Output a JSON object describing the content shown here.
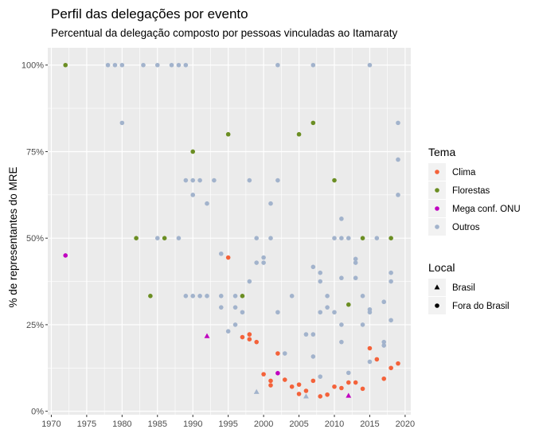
{
  "chart_data": {
    "type": "scatter",
    "title": "Perfil das delegações por evento",
    "subtitle": "Percentual da delegação composto por pessoas vinculadas ao Itamaraty",
    "xlabel": "",
    "ylabel": "% de representantes do MRE",
    "xlim": [
      1969.5,
      2020.8
    ],
    "ylim": [
      -0.01,
      1.05
    ],
    "x_ticks": [
      1970,
      1975,
      1980,
      1985,
      1990,
      1995,
      2000,
      2005,
      2010,
      2015,
      2020
    ],
    "y_ticks": [
      {
        "value": 0,
        "label": "0%"
      },
      {
        "value": 0.25,
        "label": "25%"
      },
      {
        "value": 0.5,
        "label": "50%"
      },
      {
        "value": 0.75,
        "label": "75%"
      },
      {
        "value": 1.0,
        "label": "100%"
      }
    ],
    "grid": true,
    "legend_position": "right",
    "colors": {
      "Clima": "#f4623a",
      "Florestas": "#6b8e23",
      "Mega conf. ONU": "#c000c0",
      "Outros": "#a2b3cc"
    },
    "legend_tema": {
      "title": "Tema",
      "items": [
        {
          "key": "Clima",
          "label": "Clima"
        },
        {
          "key": "Florestas",
          "label": "Florestas"
        },
        {
          "key": "Mega conf. ONU",
          "label": "Mega conf. ONU"
        },
        {
          "key": "Outros",
          "label": "Outros"
        }
      ]
    },
    "legend_local": {
      "title": "Local",
      "items": [
        {
          "shape": "triangle",
          "label": "Brasil"
        },
        {
          "shape": "circle",
          "label": "Fora do Brasil"
        }
      ]
    },
    "points": [
      {
        "x": 1972,
        "y": 1.0,
        "tema": "Florestas",
        "local": "Fora do Brasil"
      },
      {
        "x": 1972,
        "y": 0.45,
        "tema": "Mega conf. ONU",
        "local": "Fora do Brasil"
      },
      {
        "x": 1978,
        "y": 1.0,
        "tema": "Outros",
        "local": "Fora do Brasil"
      },
      {
        "x": 1979,
        "y": 1.0,
        "tema": "Outros",
        "local": "Fora do Brasil"
      },
      {
        "x": 1980,
        "y": 1.0,
        "tema": "Outros",
        "local": "Fora do Brasil"
      },
      {
        "x": 1983,
        "y": 1.0,
        "tema": "Outros",
        "local": "Fora do Brasil"
      },
      {
        "x": 1985,
        "y": 1.0,
        "tema": "Outros",
        "local": "Fora do Brasil"
      },
      {
        "x": 1987,
        "y": 1.0,
        "tema": "Outros",
        "local": "Fora do Brasil"
      },
      {
        "x": 1988,
        "y": 1.0,
        "tema": "Outros",
        "local": "Fora do Brasil"
      },
      {
        "x": 1989,
        "y": 1.0,
        "tema": "Outros",
        "local": "Fora do Brasil"
      },
      {
        "x": 2002,
        "y": 1.0,
        "tema": "Outros",
        "local": "Fora do Brasil"
      },
      {
        "x": 2007,
        "y": 1.0,
        "tema": "Outros",
        "local": "Fora do Brasil"
      },
      {
        "x": 2015,
        "y": 1.0,
        "tema": "Outros",
        "local": "Fora do Brasil"
      },
      {
        "x": 1980,
        "y": 0.833,
        "tema": "Outros",
        "local": "Fora do Brasil"
      },
      {
        "x": 2019,
        "y": 0.833,
        "tema": "Outros",
        "local": "Fora do Brasil"
      },
      {
        "x": 1995,
        "y": 0.8,
        "tema": "Florestas",
        "local": "Fora do Brasil"
      },
      {
        "x": 2005,
        "y": 0.8,
        "tema": "Florestas",
        "local": "Fora do Brasil"
      },
      {
        "x": 2007,
        "y": 0.833,
        "tema": "Florestas",
        "local": "Fora do Brasil"
      },
      {
        "x": 1990,
        "y": 0.75,
        "tema": "Florestas",
        "local": "Fora do Brasil"
      },
      {
        "x": 2019,
        "y": 0.727,
        "tema": "Outros",
        "local": "Fora do Brasil"
      },
      {
        "x": 1989,
        "y": 0.667,
        "tema": "Outros",
        "local": "Fora do Brasil"
      },
      {
        "x": 1990,
        "y": 0.667,
        "tema": "Outros",
        "local": "Fora do Brasil"
      },
      {
        "x": 1991,
        "y": 0.667,
        "tema": "Outros",
        "local": "Fora do Brasil"
      },
      {
        "x": 1993,
        "y": 0.667,
        "tema": "Outros",
        "local": "Fora do Brasil"
      },
      {
        "x": 1998,
        "y": 0.667,
        "tema": "Outros",
        "local": "Fora do Brasil"
      },
      {
        "x": 2002,
        "y": 0.667,
        "tema": "Outros",
        "local": "Fora do Brasil"
      },
      {
        "x": 2010,
        "y": 0.667,
        "tema": "Florestas",
        "local": "Fora do Brasil"
      },
      {
        "x": 1990,
        "y": 0.625,
        "tema": "Outros",
        "local": "Fora do Brasil"
      },
      {
        "x": 2019,
        "y": 0.625,
        "tema": "Outros",
        "local": "Fora do Brasil"
      },
      {
        "x": 1992,
        "y": 0.6,
        "tema": "Outros",
        "local": "Fora do Brasil"
      },
      {
        "x": 2001,
        "y": 0.6,
        "tema": "Outros",
        "local": "Fora do Brasil"
      },
      {
        "x": 2011,
        "y": 0.556,
        "tema": "Outros",
        "local": "Fora do Brasil"
      },
      {
        "x": 2011,
        "y": 0.5,
        "tema": "Outros",
        "local": "Fora do Brasil"
      },
      {
        "x": 1982,
        "y": 0.5,
        "tema": "Florestas",
        "local": "Fora do Brasil"
      },
      {
        "x": 1985,
        "y": 0.5,
        "tema": "Outros",
        "local": "Fora do Brasil"
      },
      {
        "x": 1986,
        "y": 0.5,
        "tema": "Florestas",
        "local": "Fora do Brasil"
      },
      {
        "x": 1988,
        "y": 0.5,
        "tema": "Outros",
        "local": "Fora do Brasil"
      },
      {
        "x": 1999,
        "y": 0.5,
        "tema": "Outros",
        "local": "Fora do Brasil"
      },
      {
        "x": 2001,
        "y": 0.5,
        "tema": "Outros",
        "local": "Fora do Brasil"
      },
      {
        "x": 2010,
        "y": 0.5,
        "tema": "Outros",
        "local": "Fora do Brasil"
      },
      {
        "x": 2012,
        "y": 0.5,
        "tema": "Outros",
        "local": "Fora do Brasil"
      },
      {
        "x": 2014,
        "y": 0.5,
        "tema": "Florestas",
        "local": "Fora do Brasil"
      },
      {
        "x": 2016,
        "y": 0.5,
        "tema": "Outros",
        "local": "Fora do Brasil"
      },
      {
        "x": 2018,
        "y": 0.5,
        "tema": "Florestas",
        "local": "Fora do Brasil"
      },
      {
        "x": 1994,
        "y": 0.455,
        "tema": "Outros",
        "local": "Fora do Brasil"
      },
      {
        "x": 1995,
        "y": 0.444,
        "tema": "Clima",
        "local": "Fora do Brasil"
      },
      {
        "x": 2000,
        "y": 0.444,
        "tema": "Outros",
        "local": "Fora do Brasil"
      },
      {
        "x": 2013,
        "y": 0.44,
        "tema": "Outros",
        "local": "Fora do Brasil"
      },
      {
        "x": 1999,
        "y": 0.429,
        "tema": "Outros",
        "local": "Fora do Brasil"
      },
      {
        "x": 2000,
        "y": 0.429,
        "tema": "Outros",
        "local": "Fora do Brasil"
      },
      {
        "x": 2013,
        "y": 0.429,
        "tema": "Outros",
        "local": "Fora do Brasil"
      },
      {
        "x": 2007,
        "y": 0.417,
        "tema": "Outros",
        "local": "Fora do Brasil"
      },
      {
        "x": 2008,
        "y": 0.4,
        "tema": "Outros",
        "local": "Fora do Brasil"
      },
      {
        "x": 2018,
        "y": 0.4,
        "tema": "Outros",
        "local": "Fora do Brasil"
      },
      {
        "x": 2011,
        "y": 0.385,
        "tema": "Outros",
        "local": "Fora do Brasil"
      },
      {
        "x": 2013,
        "y": 0.385,
        "tema": "Outros",
        "local": "Fora do Brasil"
      },
      {
        "x": 1998,
        "y": 0.375,
        "tema": "Outros",
        "local": "Fora do Brasil"
      },
      {
        "x": 2008,
        "y": 0.375,
        "tema": "Outros",
        "local": "Fora do Brasil"
      },
      {
        "x": 2018,
        "y": 0.375,
        "tema": "Outros",
        "local": "Fora do Brasil"
      },
      {
        "x": 1989,
        "y": 0.333,
        "tema": "Outros",
        "local": "Fora do Brasil"
      },
      {
        "x": 1990,
        "y": 0.333,
        "tema": "Outros",
        "local": "Fora do Brasil"
      },
      {
        "x": 1991,
        "y": 0.333,
        "tema": "Outros",
        "local": "Fora do Brasil"
      },
      {
        "x": 1992,
        "y": 0.333,
        "tema": "Outros",
        "local": "Fora do Brasil"
      },
      {
        "x": 1984,
        "y": 0.333,
        "tema": "Florestas",
        "local": "Fora do Brasil"
      },
      {
        "x": 1994,
        "y": 0.333,
        "tema": "Outros",
        "local": "Fora do Brasil"
      },
      {
        "x": 1996,
        "y": 0.333,
        "tema": "Outros",
        "local": "Fora do Brasil"
      },
      {
        "x": 1997,
        "y": 0.333,
        "tema": "Florestas",
        "local": "Fora do Brasil"
      },
      {
        "x": 2004,
        "y": 0.333,
        "tema": "Outros",
        "local": "Fora do Brasil"
      },
      {
        "x": 2009,
        "y": 0.333,
        "tema": "Outros",
        "local": "Fora do Brasil"
      },
      {
        "x": 2014,
        "y": 0.333,
        "tema": "Outros",
        "local": "Fora do Brasil"
      },
      {
        "x": 2017,
        "y": 0.316,
        "tema": "Outros",
        "local": "Fora do Brasil"
      },
      {
        "x": 2012,
        "y": 0.308,
        "tema": "Florestas",
        "local": "Fora do Brasil"
      },
      {
        "x": 1994,
        "y": 0.3,
        "tema": "Outros",
        "local": "Fora do Brasil"
      },
      {
        "x": 1996,
        "y": 0.3,
        "tema": "Outros",
        "local": "Fora do Brasil"
      },
      {
        "x": 2009,
        "y": 0.3,
        "tema": "Outros",
        "local": "Fora do Brasil"
      },
      {
        "x": 2015,
        "y": 0.294,
        "tema": "Outros",
        "local": "Fora do Brasil"
      },
      {
        "x": 2002,
        "y": 0.286,
        "tema": "Outros",
        "local": "Fora do Brasil"
      },
      {
        "x": 1997,
        "y": 0.286,
        "tema": "Outros",
        "local": "Fora do Brasil"
      },
      {
        "x": 2008,
        "y": 0.286,
        "tema": "Outros",
        "local": "Fora do Brasil"
      },
      {
        "x": 2010,
        "y": 0.286,
        "tema": "Outros",
        "local": "Fora do Brasil"
      },
      {
        "x": 2015,
        "y": 0.286,
        "tema": "Outros",
        "local": "Fora do Brasil"
      },
      {
        "x": 2014,
        "y": 0.25,
        "tema": "Outros",
        "local": "Fora do Brasil"
      },
      {
        "x": 2018,
        "y": 0.263,
        "tema": "Outros",
        "local": "Fora do Brasil"
      },
      {
        "x": 1996,
        "y": 0.25,
        "tema": "Outros",
        "local": "Fora do Brasil"
      },
      {
        "x": 2011,
        "y": 0.25,
        "tema": "Outros",
        "local": "Fora do Brasil"
      },
      {
        "x": 1995,
        "y": 0.231,
        "tema": "Outros",
        "local": "Fora do Brasil"
      },
      {
        "x": 2006,
        "y": 0.222,
        "tema": "Outros",
        "local": "Fora do Brasil"
      },
      {
        "x": 2007,
        "y": 0.222,
        "tema": "Outros",
        "local": "Fora do Brasil"
      },
      {
        "x": 1998,
        "y": 0.222,
        "tema": "Clima",
        "local": "Fora do Brasil"
      },
      {
        "x": 1992,
        "y": 0.217,
        "tema": "Mega conf. ONU",
        "local": "Brasil"
      },
      {
        "x": 1997,
        "y": 0.214,
        "tema": "Clima",
        "local": "Fora do Brasil"
      },
      {
        "x": 1998,
        "y": 0.208,
        "tema": "Clima",
        "local": "Fora do Brasil"
      },
      {
        "x": 1999,
        "y": 0.2,
        "tema": "Clima",
        "local": "Fora do Brasil"
      },
      {
        "x": 2011,
        "y": 0.2,
        "tema": "Outros",
        "local": "Fora do Brasil"
      },
      {
        "x": 2017,
        "y": 0.2,
        "tema": "Outros",
        "local": "Fora do Brasil"
      },
      {
        "x": 2017,
        "y": 0.19,
        "tema": "Outros",
        "local": "Fora do Brasil"
      },
      {
        "x": 2015,
        "y": 0.182,
        "tema": "Clima",
        "local": "Fora do Brasil"
      },
      {
        "x": 2002,
        "y": 0.167,
        "tema": "Clima",
        "local": "Fora do Brasil"
      },
      {
        "x": 2003,
        "y": 0.167,
        "tema": "Outros",
        "local": "Fora do Brasil"
      },
      {
        "x": 2007,
        "y": 0.158,
        "tema": "Outros",
        "local": "Fora do Brasil"
      },
      {
        "x": 2016,
        "y": 0.15,
        "tema": "Clima",
        "local": "Fora do Brasil"
      },
      {
        "x": 2015,
        "y": 0.143,
        "tema": "Outros",
        "local": "Fora do Brasil"
      },
      {
        "x": 2019,
        "y": 0.138,
        "tema": "Clima",
        "local": "Fora do Brasil"
      },
      {
        "x": 2018,
        "y": 0.125,
        "tema": "Clima",
        "local": "Fora do Brasil"
      },
      {
        "x": 2000,
        "y": 0.107,
        "tema": "Clima",
        "local": "Fora do Brasil"
      },
      {
        "x": 2002,
        "y": 0.11,
        "tema": "Mega conf. ONU",
        "local": "Fora do Brasil"
      },
      {
        "x": 2012,
        "y": 0.111,
        "tema": "Outros",
        "local": "Fora do Brasil"
      },
      {
        "x": 2008,
        "y": 0.1,
        "tema": "Outros",
        "local": "Fora do Brasil"
      },
      {
        "x": 2017,
        "y": 0.094,
        "tema": "Clima",
        "local": "Fora do Brasil"
      },
      {
        "x": 2003,
        "y": 0.091,
        "tema": "Clima",
        "local": "Fora do Brasil"
      },
      {
        "x": 2001,
        "y": 0.088,
        "tema": "Clima",
        "local": "Fora do Brasil"
      },
      {
        "x": 2007,
        "y": 0.088,
        "tema": "Clima",
        "local": "Fora do Brasil"
      },
      {
        "x": 2012,
        "y": 0.083,
        "tema": "Clima",
        "local": "Fora do Brasil"
      },
      {
        "x": 2013,
        "y": 0.083,
        "tema": "Clima",
        "local": "Fora do Brasil"
      },
      {
        "x": 2005,
        "y": 0.077,
        "tema": "Clima",
        "local": "Fora do Brasil"
      },
      {
        "x": 2001,
        "y": 0.075,
        "tema": "Clima",
        "local": "Fora do Brasil"
      },
      {
        "x": 2004,
        "y": 0.071,
        "tema": "Clima",
        "local": "Fora do Brasil"
      },
      {
        "x": 2010,
        "y": 0.071,
        "tema": "Clima",
        "local": "Fora do Brasil"
      },
      {
        "x": 2011,
        "y": 0.067,
        "tema": "Clima",
        "local": "Fora do Brasil"
      },
      {
        "x": 2014,
        "y": 0.065,
        "tema": "Clima",
        "local": "Fora do Brasil"
      },
      {
        "x": 2006,
        "y": 0.059,
        "tema": "Clima",
        "local": "Fora do Brasil"
      },
      {
        "x": 1999,
        "y": 0.056,
        "tema": "Outros",
        "local": "Brasil"
      },
      {
        "x": 2005,
        "y": 0.05,
        "tema": "Clima",
        "local": "Fora do Brasil"
      },
      {
        "x": 2009,
        "y": 0.048,
        "tema": "Clima",
        "local": "Fora do Brasil"
      },
      {
        "x": 2012,
        "y": 0.045,
        "tema": "Mega conf. ONU",
        "local": "Brasil"
      },
      {
        "x": 2006,
        "y": 0.043,
        "tema": "Outros",
        "local": "Brasil"
      },
      {
        "x": 2008,
        "y": 0.043,
        "tema": "Clima",
        "local": "Fora do Brasil"
      }
    ]
  }
}
